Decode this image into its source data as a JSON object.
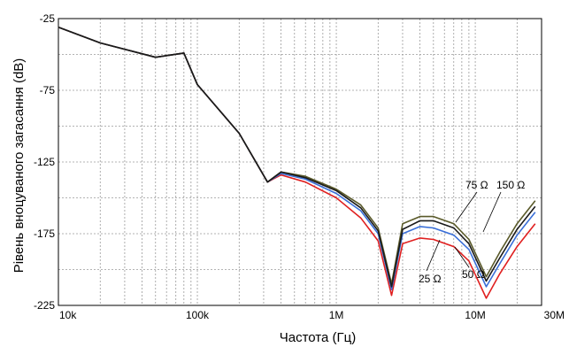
{
  "chart_data": {
    "type": "line",
    "title": "",
    "xlabel": "Частота (Гц)",
    "ylabel": "Рівень вноцуваного загасання (dB)",
    "x_scale": "log",
    "xlim": [
      10000,
      30000000
    ],
    "ylim": [
      -225,
      -25
    ],
    "x_ticks": [
      {
        "value": 10000,
        "label": "10k"
      },
      {
        "value": 100000,
        "label": "100k"
      },
      {
        "value": 1000000,
        "label": "1M"
      },
      {
        "value": 10000000,
        "label": "10M"
      },
      {
        "value": 30000000,
        "label": "30M"
      }
    ],
    "y_ticks": [
      {
        "value": -25,
        "label": "-25"
      },
      {
        "value": -75,
        "label": "-75"
      },
      {
        "value": -125,
        "label": "-125"
      },
      {
        "value": -175,
        "label": "-175"
      },
      {
        "value": -225,
        "label": "-225"
      }
    ],
    "grid": true,
    "x": [
      10000,
      20000,
      50000,
      80000,
      100000,
      200000,
      320000,
      400000,
      600000,
      1000000,
      1500000,
      2000000,
      2500000,
      3000000,
      4000000,
      5000000,
      7000000,
      9000000,
      12000000,
      15000000,
      20000000,
      27000000
    ],
    "series": [
      {
        "name": "25 Ω",
        "color": "#1a1a1a",
        "values": [
          -31,
          -42,
          -52,
          -49,
          -71,
          -105,
          -139,
          -132,
          -136,
          -145,
          -157,
          -173,
          -212,
          -172,
          -166,
          -166,
          -171,
          -182,
          -208,
          -192,
          -172,
          -156
        ]
      },
      {
        "name": "50 Ω",
        "color": "#e02020",
        "values": [
          -31,
          -42,
          -52,
          -49,
          -71,
          -105,
          -139,
          -134,
          -139,
          -150,
          -164,
          -180,
          -218,
          -182,
          -178,
          -179,
          -184,
          -194,
          -220,
          -203,
          -184,
          -168
        ]
      },
      {
        "name": "75 Ω",
        "color": "#3a6fd8",
        "values": [
          -31,
          -42,
          -52,
          -49,
          -71,
          -105,
          -139,
          -133,
          -137,
          -147,
          -159,
          -175,
          -214,
          -175,
          -170,
          -171,
          -176,
          -186,
          -212,
          -196,
          -176,
          -160
        ]
      },
      {
        "name": "150 Ω",
        "color": "#5a5a2a",
        "values": [
          -31,
          -42,
          -52,
          -49,
          -71,
          -105,
          -139,
          -132,
          -135,
          -144,
          -155,
          -171,
          -210,
          -168,
          -163,
          -163,
          -168,
          -179,
          -205,
          -188,
          -168,
          -152
        ]
      }
    ],
    "annotations": [
      "75 Ω",
      "150 Ω",
      "25 Ω",
      "50 Ω"
    ]
  }
}
